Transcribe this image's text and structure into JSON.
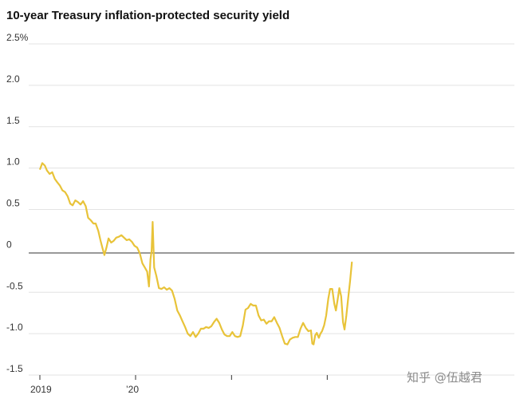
{
  "chart_data": {
    "type": "line",
    "title": "10-year Treasury inflation-protected security yield",
    "xlabel": "",
    "ylabel": "",
    "ylim": [
      -1.5,
      2.5
    ],
    "yticks": [
      {
        "value": 2.5,
        "label": "2.5%"
      },
      {
        "value": 2.0,
        "label": "2.0"
      },
      {
        "value": 1.5,
        "label": "1.5"
      },
      {
        "value": 1.0,
        "label": "1.0"
      },
      {
        "value": 0.5,
        "label": "0.5"
      },
      {
        "value": 0,
        "label": "0"
      },
      {
        "value": -0.5,
        "label": "-0.5"
      },
      {
        "value": -1.0,
        "label": "-1.0"
      },
      {
        "value": -1.5,
        "label": "-1.5"
      }
    ],
    "xlim": [
      "2019-01-01",
      "2022-04-15"
    ],
    "xticks": [
      {
        "date": "2019-01-01",
        "label": "2019"
      },
      {
        "date": "2020-01-01",
        "label": "’20"
      },
      {
        "date": "2021-01-01",
        "label": ""
      },
      {
        "date": "2022-01-01",
        "label": ""
      }
    ],
    "grid": true,
    "series_color": "#e8c339",
    "series": [
      {
        "name": "",
        "points": [
          [
            "2019-01-02",
            0.99
          ],
          [
            "2019-01-10",
            1.06
          ],
          [
            "2019-01-20",
            1.03
          ],
          [
            "2019-01-28",
            0.97
          ],
          [
            "2019-02-07",
            0.93
          ],
          [
            "2019-02-17",
            0.95
          ],
          [
            "2019-02-27",
            0.87
          ],
          [
            "2019-03-08",
            0.83
          ],
          [
            "2019-03-18",
            0.79
          ],
          [
            "2019-03-28",
            0.73
          ],
          [
            "2019-04-07",
            0.71
          ],
          [
            "2019-04-17",
            0.66
          ],
          [
            "2019-04-27",
            0.57
          ],
          [
            "2019-05-06",
            0.55
          ],
          [
            "2019-05-16",
            0.61
          ],
          [
            "2019-05-26",
            0.59
          ],
          [
            "2019-06-05",
            0.56
          ],
          [
            "2019-06-15",
            0.6
          ],
          [
            "2019-06-25",
            0.54
          ],
          [
            "2019-07-04",
            0.4
          ],
          [
            "2019-07-14",
            0.37
          ],
          [
            "2019-07-24",
            0.33
          ],
          [
            "2019-08-02",
            0.33
          ],
          [
            "2019-08-12",
            0.24
          ],
          [
            "2019-08-20",
            0.13
          ],
          [
            "2019-08-28",
            0.03
          ],
          [
            "2019-09-04",
            -0.05
          ],
          [
            "2019-09-12",
            0.04
          ],
          [
            "2019-09-20",
            0.15
          ],
          [
            "2019-09-30",
            0.1
          ],
          [
            "2019-10-09",
            0.12
          ],
          [
            "2019-10-19",
            0.16
          ],
          [
            "2019-10-29",
            0.17
          ],
          [
            "2019-11-08",
            0.19
          ],
          [
            "2019-11-18",
            0.16
          ],
          [
            "2019-11-28",
            0.13
          ],
          [
            "2019-12-08",
            0.14
          ],
          [
            "2019-12-18",
            0.11
          ],
          [
            "2019-12-28",
            0.06
          ],
          [
            "2020-01-07",
            0.04
          ],
          [
            "2020-01-17",
            -0.03
          ],
          [
            "2020-01-27",
            -0.15
          ],
          [
            "2020-02-05",
            -0.2
          ],
          [
            "2020-02-14",
            -0.25
          ],
          [
            "2020-02-21",
            -0.43
          ],
          [
            "2020-02-27",
            -0.1
          ],
          [
            "2020-03-02",
            0.0
          ],
          [
            "2020-03-06",
            0.35
          ],
          [
            "2020-03-12",
            -0.2
          ],
          [
            "2020-03-20",
            -0.3
          ],
          [
            "2020-03-30",
            -0.45
          ],
          [
            "2020-04-09",
            -0.46
          ],
          [
            "2020-04-19",
            -0.44
          ],
          [
            "2020-04-29",
            -0.47
          ],
          [
            "2020-05-09",
            -0.45
          ],
          [
            "2020-05-19",
            -0.48
          ],
          [
            "2020-05-29",
            -0.58
          ],
          [
            "2020-06-08",
            -0.72
          ],
          [
            "2020-06-18",
            -0.78
          ],
          [
            "2020-06-28",
            -0.85
          ],
          [
            "2020-07-08",
            -0.92
          ],
          [
            "2020-07-18",
            -1.0
          ],
          [
            "2020-07-28",
            -1.03
          ],
          [
            "2020-08-07",
            -0.98
          ],
          [
            "2020-08-17",
            -1.04
          ],
          [
            "2020-08-27",
            -1.0
          ],
          [
            "2020-09-06",
            -0.94
          ],
          [
            "2020-09-16",
            -0.94
          ],
          [
            "2020-09-26",
            -0.92
          ],
          [
            "2020-10-06",
            -0.93
          ],
          [
            "2020-10-16",
            -0.91
          ],
          [
            "2020-10-26",
            -0.86
          ],
          [
            "2020-11-05",
            -0.82
          ],
          [
            "2020-11-15",
            -0.87
          ],
          [
            "2020-11-25",
            -0.95
          ],
          [
            "2020-12-05",
            -1.01
          ],
          [
            "2020-12-15",
            -1.03
          ],
          [
            "2020-12-25",
            -1.03
          ],
          [
            "2021-01-04",
            -0.98
          ],
          [
            "2021-01-14",
            -1.03
          ],
          [
            "2021-01-24",
            -1.04
          ],
          [
            "2021-02-03",
            -1.03
          ],
          [
            "2021-02-13",
            -0.9
          ],
          [
            "2021-02-23",
            -0.71
          ],
          [
            "2021-03-05",
            -0.69
          ],
          [
            "2021-03-15",
            -0.64
          ],
          [
            "2021-03-25",
            -0.66
          ],
          [
            "2021-04-04",
            -0.66
          ],
          [
            "2021-04-14",
            -0.78
          ],
          [
            "2021-04-24",
            -0.84
          ],
          [
            "2021-05-04",
            -0.83
          ],
          [
            "2021-05-14",
            -0.88
          ],
          [
            "2021-05-24",
            -0.85
          ],
          [
            "2021-06-03",
            -0.85
          ],
          [
            "2021-06-13",
            -0.8
          ],
          [
            "2021-06-23",
            -0.87
          ],
          [
            "2021-07-03",
            -0.93
          ],
          [
            "2021-07-13",
            -1.03
          ],
          [
            "2021-07-23",
            -1.12
          ],
          [
            "2021-08-02",
            -1.13
          ],
          [
            "2021-08-12",
            -1.07
          ],
          [
            "2021-08-22",
            -1.05
          ],
          [
            "2021-09-01",
            -1.04
          ],
          [
            "2021-09-11",
            -1.04
          ],
          [
            "2021-09-21",
            -0.94
          ],
          [
            "2021-10-01",
            -0.87
          ],
          [
            "2021-10-11",
            -0.93
          ],
          [
            "2021-10-21",
            -0.97
          ],
          [
            "2021-10-31",
            -0.96
          ],
          [
            "2021-11-05",
            -1.12
          ],
          [
            "2021-11-10",
            -1.13
          ],
          [
            "2021-11-16",
            -1.02
          ],
          [
            "2021-11-22",
            -0.99
          ],
          [
            "2021-11-30",
            -1.05
          ],
          [
            "2021-12-06",
            -1.0
          ],
          [
            "2021-12-12",
            -0.97
          ],
          [
            "2021-12-20",
            -0.9
          ],
          [
            "2021-12-28",
            -0.78
          ],
          [
            "2022-01-05",
            -0.58
          ],
          [
            "2022-01-12",
            -0.46
          ],
          [
            "2022-01-20",
            -0.46
          ],
          [
            "2022-01-28",
            -0.64
          ],
          [
            "2022-02-03",
            -0.72
          ],
          [
            "2022-02-09",
            -0.6
          ],
          [
            "2022-02-16",
            -0.45
          ],
          [
            "2022-02-23",
            -0.55
          ],
          [
            "2022-03-02",
            -0.86
          ],
          [
            "2022-03-08",
            -0.95
          ],
          [
            "2022-03-15",
            -0.78
          ],
          [
            "2022-03-22",
            -0.57
          ],
          [
            "2022-03-29",
            -0.37
          ],
          [
            "2022-04-05",
            -0.14
          ]
        ]
      }
    ]
  },
  "watermark": "知乎 @伍越君"
}
